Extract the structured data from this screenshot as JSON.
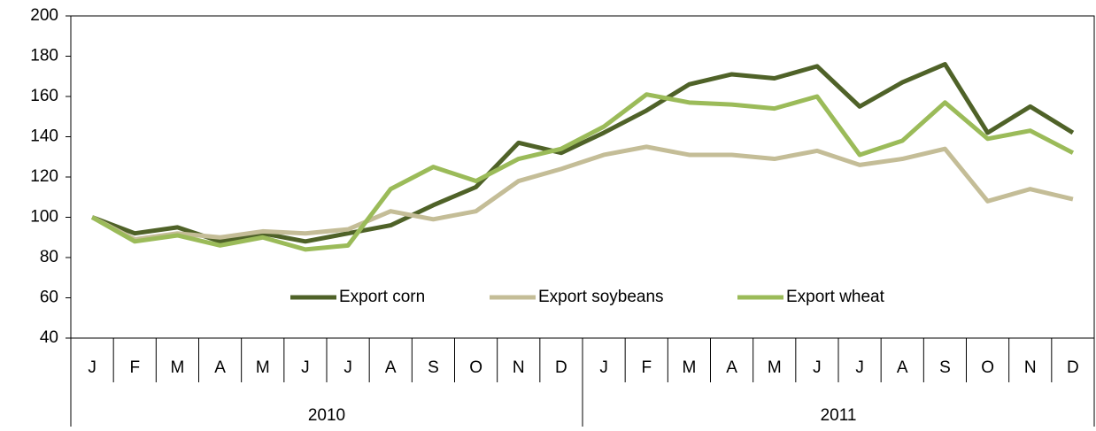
{
  "chart_data": {
    "type": "line",
    "categories": [
      "J",
      "F",
      "M",
      "A",
      "M",
      "J",
      "J",
      "A",
      "S",
      "O",
      "N",
      "D",
      "J",
      "F",
      "M",
      "A",
      "M",
      "J",
      "J",
      "A",
      "S",
      "O",
      "N",
      "D"
    ],
    "category_groups": [
      "2010",
      "2011"
    ],
    "series": [
      {
        "name": "Export corn",
        "color": "#4f6228",
        "values": [
          100,
          92,
          95,
          88,
          92,
          88,
          92,
          96,
          106,
          115,
          137,
          132,
          142,
          153,
          166,
          171,
          169,
          175,
          155,
          167,
          176,
          142,
          155,
          142
        ]
      },
      {
        "name": "Export soybeans",
        "color": "#c4bd97",
        "values": [
          100,
          89,
          92,
          90,
          93,
          92,
          94,
          103,
          99,
          103,
          118,
          124,
          131,
          135,
          131,
          131,
          129,
          133,
          126,
          129,
          134,
          108,
          114,
          109
        ]
      },
      {
        "name": "Export wheat",
        "color": "#9bbb59",
        "values": [
          100,
          88,
          91,
          86,
          90,
          84,
          86,
          114,
          125,
          118,
          129,
          134,
          145,
          161,
          157,
          156,
          154,
          160,
          131,
          138,
          157,
          139,
          143,
          132
        ]
      }
    ],
    "ylim": [
      40,
      200
    ],
    "yticks": [
      40,
      60,
      80,
      100,
      120,
      140,
      160,
      180,
      200
    ],
    "grid": false,
    "legend": "bottom"
  }
}
